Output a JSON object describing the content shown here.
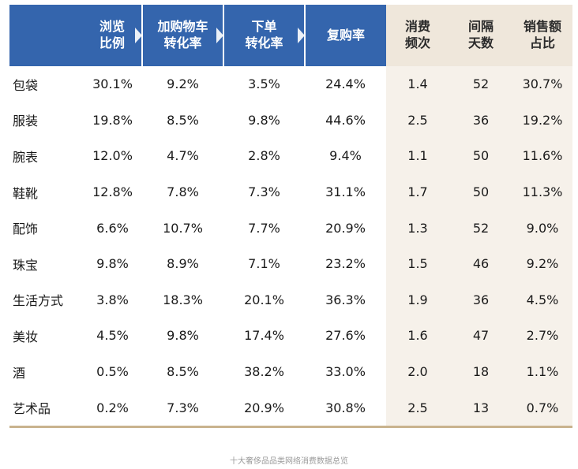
{
  "chart_data": {
    "type": "table",
    "columns": [
      "",
      "浏览\n比例",
      "加购物车\n转化率",
      "下单\n转化率",
      "复购率",
      "消费\n频次",
      "间隔\n天数",
      "销售额\n占比"
    ],
    "rows": [
      [
        "包袋",
        "30.1%",
        "9.2%",
        "3.5%",
        "24.4%",
        "1.4",
        "52",
        "30.7%"
      ],
      [
        "服装",
        "19.8%",
        "8.5%",
        "9.8%",
        "44.6%",
        "2.5",
        "36",
        "19.2%"
      ],
      [
        "腕表",
        "12.0%",
        "4.7%",
        "2.8%",
        "9.4%",
        "1.1",
        "50",
        "11.6%"
      ],
      [
        "鞋靴",
        "12.8%",
        "7.8%",
        "7.3%",
        "31.1%",
        "1.7",
        "50",
        "11.3%"
      ],
      [
        "配饰",
        "6.6%",
        "10.7%",
        "7.7%",
        "20.9%",
        "1.3",
        "52",
        "9.0%"
      ],
      [
        "珠宝",
        "9.8%",
        "8.9%",
        "7.1%",
        "23.2%",
        "1.5",
        "46",
        "9.2%"
      ],
      [
        "生活方式",
        "3.8%",
        "18.3%",
        "20.1%",
        "36.3%",
        "1.9",
        "36",
        "4.5%"
      ],
      [
        "美妆",
        "4.5%",
        "9.8%",
        "17.4%",
        "27.6%",
        "1.6",
        "47",
        "2.7%"
      ],
      [
        "酒",
        "0.5%",
        "8.5%",
        "38.2%",
        "33.0%",
        "2.0",
        "18",
        "1.1%"
      ],
      [
        "艺术品",
        "0.2%",
        "7.3%",
        "20.9%",
        "30.8%",
        "2.5",
        "13",
        "0.7%"
      ]
    ],
    "caption": "十大奢侈品品类网络消费数据总览"
  },
  "colors": {
    "header_blue": "#3465ad",
    "header_beige": "#efe7db",
    "body_beige": "#f6f1ea",
    "bottom_rule": "#c9b38e"
  }
}
